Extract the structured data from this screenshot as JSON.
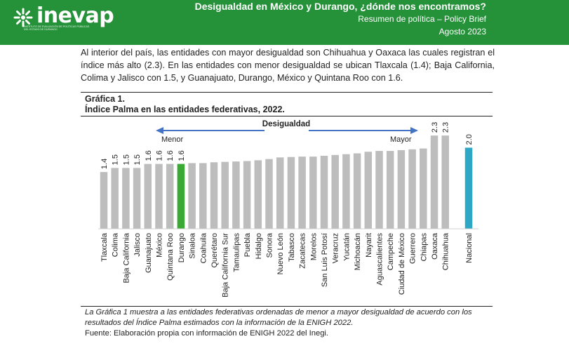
{
  "header": {
    "logo_text": "inevap",
    "logo_subtitle": "Instituto de Evaluación de Políticas Públicas del Estado de Durango",
    "title": "Desigualdad en México y Durango, ¿dónde nos encontramos?",
    "subtitle": "Resumen de política – Policy Brief",
    "date": "Agosto 2023"
  },
  "intro_text": "Al interior del país, las entidades con mayor desigualdad son Chihuahua y Oaxaca las cuales registran el índice más alto (2.3). En las entidades con menor desigualdad se ubican Tlaxcala (1.4); Baja California, Colima y Jalisco con 1.5, y Guanajuato, Durango, México y Quintana Roo con 1.6.",
  "figure": {
    "number": "Gráfica 1.",
    "title": "Índice Palma en las entidades federativas, 2022.",
    "caption": "La Gráfica 1 muestra a las entidades federativas ordenadas de menor a mayor desigualdad de acuerdo con los resultados del Índice Palma estimados con la información de la ENIGH 2022.",
    "source": "Fuente: Elaboración propia con información de ENIGH 2022 del Inegi."
  },
  "colors": {
    "banner": "#25923a",
    "bar_default": "#bdbdbd",
    "bar_highlight": "#3aaa35",
    "bar_national": "#2ea7c4",
    "arrow": "#4472c4"
  },
  "chart_data": {
    "type": "bar",
    "title": "Índice Palma en las entidades federativas, 2022.",
    "annotation": "Desigualdad",
    "arrow_left_label": "Menor",
    "arrow_right_label": "Mayor",
    "ylim": [
      0,
      2.7
    ],
    "categories": [
      "Tlaxcala",
      "Colima",
      "Baja California",
      "Jalisco",
      "Guanajuato",
      "México",
      "Quintana Roo",
      "Durango",
      "Sinaloa",
      "Coahuila",
      "Querétaro",
      "Baja California Sur",
      "Tamaulipas",
      "Puebla",
      "Hidalgo",
      "Sonora",
      "Nuevo León",
      "Tabasco",
      "Zacatecas",
      "Morelos",
      "San Luis Potosí",
      "Veracruz",
      "Yucatán",
      "Michoacán",
      "Nayarit",
      "Aguascalientes",
      "Campeche",
      "Ciudad de México",
      "Guerrero",
      "Chiapas",
      "Oaxaca",
      "Chihuahua",
      "Nacional"
    ],
    "values": [
      1.4,
      1.5,
      1.5,
      1.5,
      1.6,
      1.6,
      1.6,
      1.6,
      1.62,
      1.62,
      1.64,
      1.65,
      1.66,
      1.67,
      1.69,
      1.72,
      1.76,
      1.77,
      1.78,
      1.78,
      1.8,
      1.82,
      1.84,
      1.86,
      1.9,
      1.92,
      1.92,
      1.94,
      1.96,
      1.98,
      2.3,
      2.3,
      2.0
    ],
    "value_labels": [
      "1.4",
      "1.5",
      "1.5",
      "1.5",
      "1.6",
      "1.6",
      "1.6",
      "1.6",
      "",
      "",
      "",
      "",
      "",
      "",
      "",
      "",
      "",
      "",
      "",
      "",
      "",
      "",
      "",
      "",
      "",
      "",
      "",
      "",
      "",
      "",
      "2.3",
      "2.3",
      "2.0"
    ],
    "highlight": "Durango",
    "national": "Nacional"
  }
}
